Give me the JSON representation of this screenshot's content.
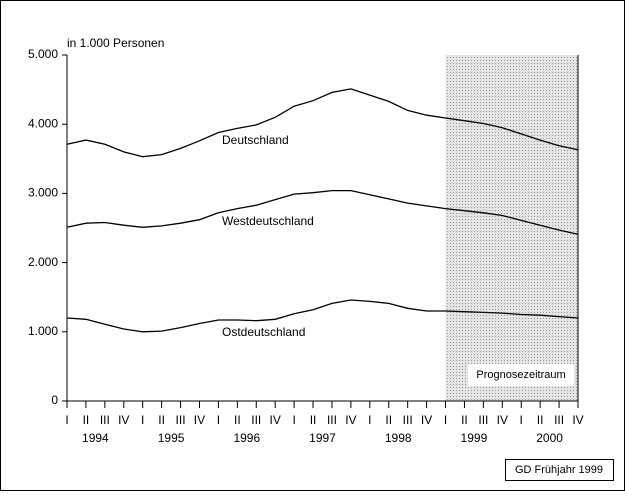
{
  "chart_data": {
    "type": "line",
    "unit_label": "in 1.000 Personen",
    "categories": [
      "I",
      "II",
      "III",
      "IV",
      "I",
      "II",
      "III",
      "IV",
      "I",
      "II",
      "III",
      "IV",
      "I",
      "II",
      "III",
      "IV",
      "I",
      "II",
      "III",
      "IV",
      "I",
      "II",
      "III",
      "IV",
      "I",
      "II",
      "III",
      "IV"
    ],
    "years": [
      "1994",
      "1995",
      "1996",
      "1997",
      "1998",
      "1999",
      "2000"
    ],
    "series": [
      {
        "name": "Deutschland",
        "color": "#000000",
        "values": [
          3710,
          3770,
          3710,
          3600,
          3530,
          3560,
          3650,
          3760,
          3880,
          3940,
          3990,
          4100,
          4260,
          4340,
          4460,
          4510,
          4420,
          4330,
          4200,
          4130,
          4090,
          4050,
          4010,
          3950,
          3860,
          3770,
          3690,
          3630
        ]
      },
      {
        "name": "Westdeutschland",
        "color": "#000000",
        "values": [
          2510,
          2570,
          2580,
          2540,
          2510,
          2530,
          2570,
          2620,
          2720,
          2780,
          2830,
          2910,
          2990,
          3010,
          3040,
          3040,
          2980,
          2920,
          2860,
          2820,
          2780,
          2750,
          2720,
          2680,
          2610,
          2540,
          2470,
          2410
        ]
      },
      {
        "name": "Ostdeutschland",
        "color": "#000000",
        "values": [
          1200,
          1180,
          1110,
          1040,
          1000,
          1010,
          1060,
          1120,
          1170,
          1170,
          1160,
          1180,
          1260,
          1320,
          1410,
          1460,
          1440,
          1410,
          1340,
          1300,
          1300,
          1290,
          1280,
          1270,
          1250,
          1240,
          1220,
          1200
        ]
      }
    ],
    "ylim": [
      0,
      5000
    ],
    "yticks": [
      0,
      {
        "value": 1000,
        "label": "1.000"
      },
      {
        "value": 2000,
        "label": "2.000"
      },
      {
        "value": 3000,
        "label": "3.000"
      },
      {
        "value": 4000,
        "label": "4.000"
      },
      {
        "value": 5000,
        "label": "5.000"
      }
    ],
    "forecast_label": "Prognosezeitraum",
    "source": "GD Frühjahr 1999"
  }
}
